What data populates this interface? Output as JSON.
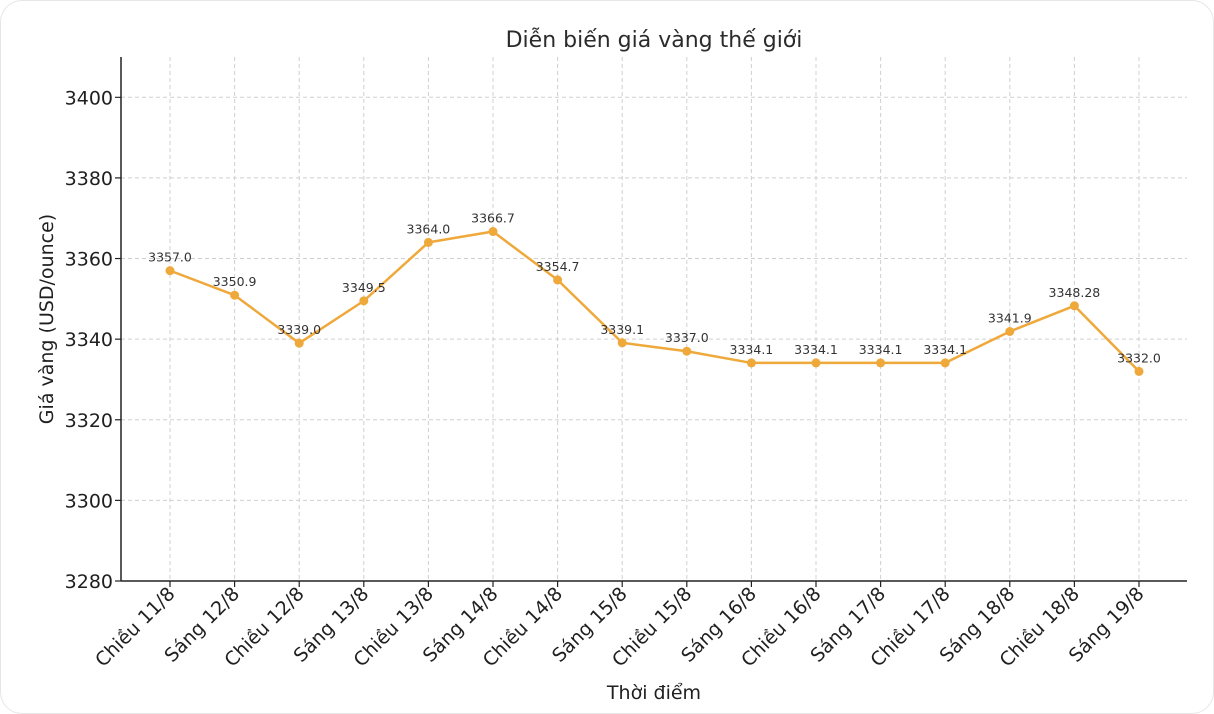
{
  "chart_data": {
    "type": "line",
    "title": "Diễn biến giá vàng thế giới",
    "xlabel": "Thời điểm",
    "ylabel": "Giá vàng (USD/ounce)",
    "ylim": [
      3280,
      3410
    ],
    "yticks": [
      3280,
      3300,
      3320,
      3340,
      3360,
      3380,
      3400
    ],
    "grid": true,
    "categories": [
      "Chiều 11/8",
      "Sáng 12/8",
      "Chiều 12/8",
      "Sáng 13/8",
      "Chiều 13/8",
      "Sáng 14/8",
      "Chiều 14/8",
      "Sáng 15/8",
      "Chiều 15/8",
      "Sáng 16/8",
      "Chiều 16/8",
      "Sáng 17/8",
      "Chiều 17/8",
      "Sáng 18/8",
      "Chiều 18/8",
      "Sáng 19/8"
    ],
    "series": [
      {
        "values": [
          3357.0,
          3350.9,
          3339.0,
          3349.5,
          3364.0,
          3366.7,
          3354.7,
          3339.1,
          3337.0,
          3334.1,
          3334.1,
          3334.1,
          3334.1,
          3341.9,
          3348.28,
          3332.0
        ],
        "labels": [
          "3357.0",
          "3350.9",
          "3339.0",
          "3349.5",
          "3364.0",
          "3366.7",
          "3354.7",
          "3339.1",
          "3337.0",
          "3334.1",
          "3334.1",
          "3334.1",
          "3334.1",
          "3341.9",
          "3348.28",
          "3332.0"
        ],
        "color": "#efa83a"
      }
    ]
  }
}
